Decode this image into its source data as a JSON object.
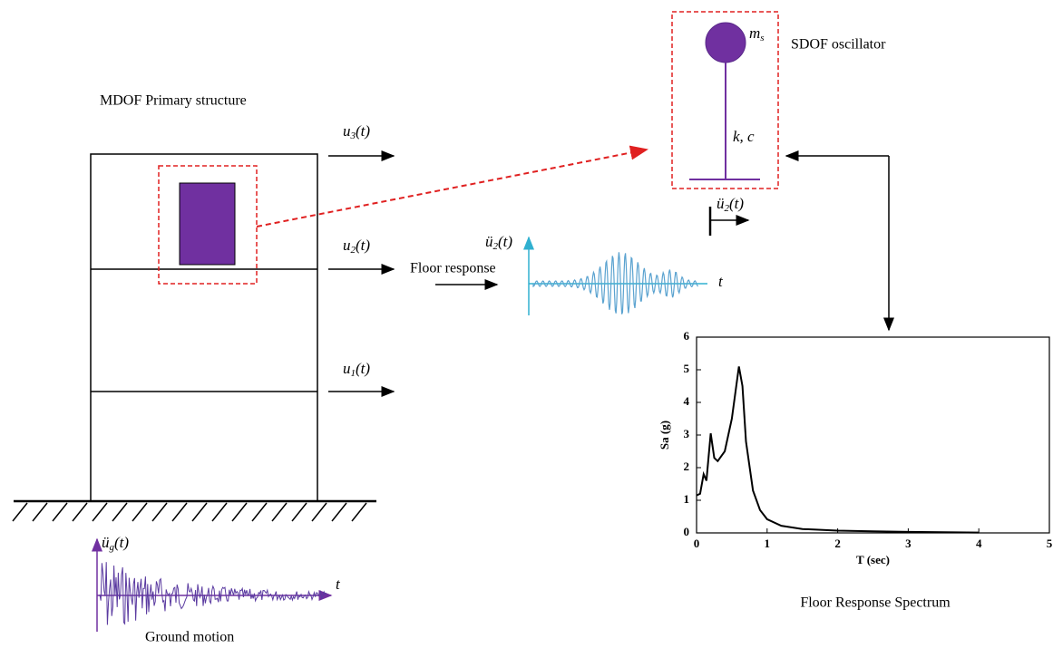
{
  "structure": {
    "title": "MDOF Primary structure",
    "floors": [
      {
        "base": "u",
        "sub": "3",
        "arg": "(t)"
      },
      {
        "base": "u",
        "sub": "2",
        "arg": "(t)"
      },
      {
        "base": "u",
        "sub": "1",
        "arg": "(t)"
      }
    ]
  },
  "ground": {
    "axis_label": {
      "base": "ü",
      "sub": "g",
      "arg": "(t)"
    },
    "time_label": "t",
    "caption": "Ground motion"
  },
  "floor_signal": {
    "caption": "Floor response",
    "axis_label": {
      "base": "ü",
      "sub": "2",
      "arg": "(t)"
    },
    "time_label": "t"
  },
  "oscillator": {
    "title": "SDOF oscillator",
    "mass": {
      "base": "m",
      "sub": "s"
    },
    "spring": "k, c",
    "input": {
      "base": "ü",
      "sub": "2",
      "arg": "(t)"
    }
  },
  "chart_data": {
    "type": "line",
    "title": "Floor Response Spectrum",
    "x_label": "T (sec)",
    "y_label": "Sa (g)",
    "x": [
      0,
      0.05,
      0.1,
      0.14,
      0.2,
      0.25,
      0.3,
      0.4,
      0.5,
      0.6,
      0.65,
      0.7,
      0.8,
      0.9,
      1.0,
      1.2,
      1.5,
      2,
      2.5,
      3,
      3.5,
      4
    ],
    "values": [
      1.15,
      1.2,
      1.8,
      1.6,
      3.05,
      2.3,
      2.2,
      2.5,
      3.5,
      5.1,
      4.5,
      2.8,
      1.3,
      0.7,
      0.42,
      0.22,
      0.12,
      0.07,
      0.05,
      0.03,
      0.02,
      0.01
    ],
    "color": "#000000",
    "xlim": [
      0,
      5
    ],
    "ylim": [
      0,
      6
    ],
    "xticks": [
      0,
      1,
      2,
      3,
      4,
      5
    ],
    "yticks": [
      0,
      1,
      2,
      3,
      4,
      5,
      6
    ]
  }
}
